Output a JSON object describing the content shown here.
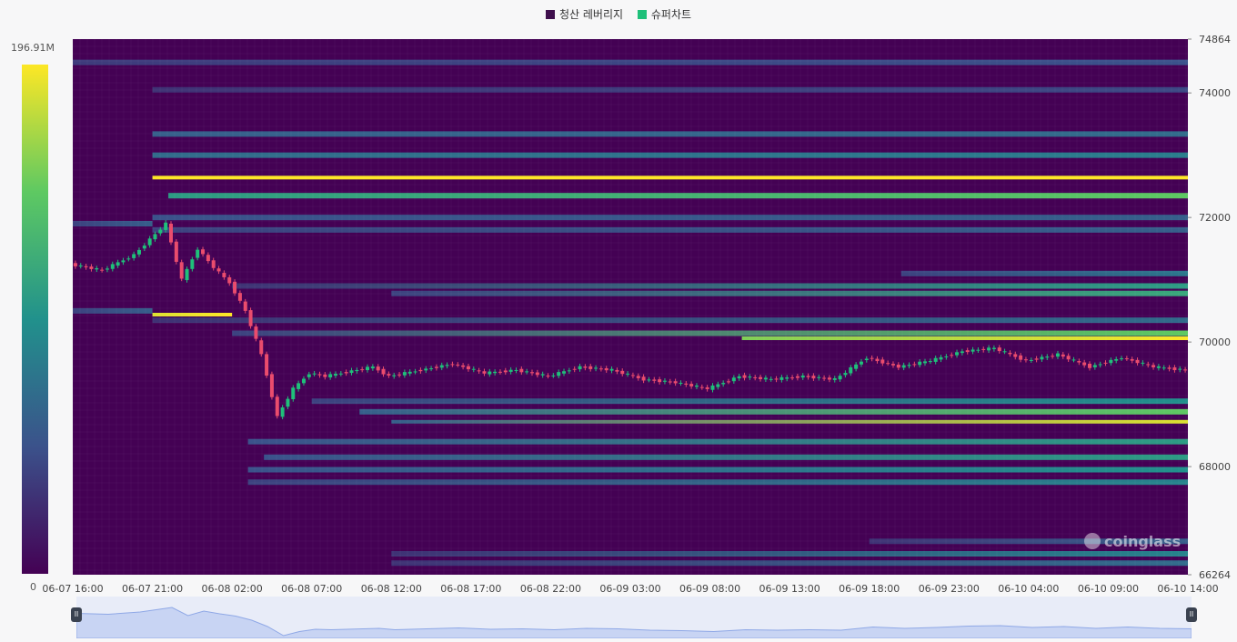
{
  "legend": {
    "items": [
      {
        "label": "청산 레버리지",
        "color": "#3f0f4d"
      },
      {
        "label": "슈퍼차트",
        "color": "#1fc07a"
      }
    ]
  },
  "colorbar": {
    "max_label": "196.91M",
    "min_label": "0"
  },
  "watermark": {
    "text": "coinglass"
  },
  "chart_data": {
    "type": "heatmap",
    "legend_placement": "top-center",
    "x_ticks": [
      "06-07 16:00",
      "06-07 21:00",
      "06-08 02:00",
      "06-08 07:00",
      "06-08 12:00",
      "06-08 17:00",
      "06-08 22:00",
      "06-09 03:00",
      "06-09 08:00",
      "06-09 13:00",
      "06-09 18:00",
      "06-09 23:00",
      "06-10 04:00",
      "06-10 09:00",
      "06-10 14:00"
    ],
    "y_ticks": [
      74864,
      74000,
      72000,
      70000,
      68000,
      66264
    ],
    "ylim": [
      66264,
      74864
    ],
    "value_range": [
      0,
      196.91
    ],
    "value_unit": "M",
    "x_range_hours": [
      0,
      70
    ],
    "liquidation_levels": [
      {
        "price": 74490,
        "start_h": 0,
        "end_h": 70,
        "intensity": [
          0.18,
          0.25
        ]
      },
      {
        "price": 74050,
        "start_h": 5,
        "end_h": 70,
        "intensity": [
          0.15,
          0.22
        ]
      },
      {
        "price": 73340,
        "start_h": 5,
        "end_h": 70,
        "intensity": [
          0.3,
          0.35
        ]
      },
      {
        "price": 73000,
        "start_h": 5,
        "end_h": 70,
        "intensity": [
          0.35,
          0.42
        ]
      },
      {
        "price": 72640,
        "start_h": 5,
        "end_h": 70,
        "intensity": [
          1.0,
          1.0
        ]
      },
      {
        "price": 72350,
        "start_h": 6,
        "end_h": 70,
        "intensity": [
          0.55,
          0.75
        ]
      },
      {
        "price": 72000,
        "start_h": 5,
        "end_h": 70,
        "intensity": [
          0.25,
          0.3
        ]
      },
      {
        "price": 71900,
        "start_h": 0,
        "end_h": 5,
        "intensity": [
          0.2,
          0.3
        ]
      },
      {
        "price": 71800,
        "start_h": 5,
        "end_h": 70,
        "intensity": [
          0.2,
          0.3
        ]
      },
      {
        "price": 71100,
        "start_h": 52,
        "end_h": 70,
        "intensity": [
          0.2,
          0.4
        ]
      },
      {
        "price": 70900,
        "start_h": 10,
        "end_h": 70,
        "intensity": [
          0.15,
          0.55
        ]
      },
      {
        "price": 70780,
        "start_h": 20,
        "end_h": 70,
        "intensity": [
          0.2,
          0.6
        ]
      },
      {
        "price": 70500,
        "start_h": 0,
        "end_h": 5,
        "intensity": [
          0.2,
          0.3
        ]
      },
      {
        "price": 70440,
        "start_h": 5,
        "end_h": 10,
        "intensity": [
          0.95,
          1.0
        ]
      },
      {
        "price": 70350,
        "start_h": 5,
        "end_h": 70,
        "intensity": [
          0.15,
          0.35
        ]
      },
      {
        "price": 70140,
        "start_h": 10,
        "end_h": 70,
        "intensity": [
          0.2,
          0.75
        ]
      },
      {
        "price": 70060,
        "start_h": 42,
        "end_h": 70,
        "intensity": [
          0.8,
          1.0
        ]
      },
      {
        "price": 69050,
        "start_h": 15,
        "end_h": 70,
        "intensity": [
          0.2,
          0.5
        ]
      },
      {
        "price": 68880,
        "start_h": 18,
        "end_h": 70,
        "intensity": [
          0.3,
          0.75
        ]
      },
      {
        "price": 68720,
        "start_h": 20,
        "end_h": 70,
        "intensity": [
          0.3,
          0.95
        ]
      },
      {
        "price": 68400,
        "start_h": 11,
        "end_h": 70,
        "intensity": [
          0.25,
          0.55
        ]
      },
      {
        "price": 68150,
        "start_h": 12,
        "end_h": 70,
        "intensity": [
          0.25,
          0.55
        ]
      },
      {
        "price": 67950,
        "start_h": 11,
        "end_h": 70,
        "intensity": [
          0.25,
          0.5
        ]
      },
      {
        "price": 67750,
        "start_h": 11,
        "end_h": 70,
        "intensity": [
          0.2,
          0.45
        ]
      },
      {
        "price": 66800,
        "start_h": 50,
        "end_h": 70,
        "intensity": [
          0.15,
          0.3
        ]
      },
      {
        "price": 66600,
        "start_h": 20,
        "end_h": 70,
        "intensity": [
          0.15,
          0.45
        ]
      },
      {
        "price": 66450,
        "start_h": 20,
        "end_h": 70,
        "intensity": [
          0.15,
          0.35
        ]
      }
    ],
    "price_series": {
      "name": "",
      "hours": [
        0,
        2,
        4,
        6,
        7,
        8,
        9,
        10,
        11,
        12,
        13,
        14,
        15,
        16,
        17,
        18,
        19,
        20,
        22,
        24,
        26,
        28,
        30,
        32,
        34,
        36,
        38,
        40,
        42,
        44,
        46,
        48,
        50,
        52,
        54,
        56,
        58,
        60,
        62,
        64,
        66,
        68,
        70
      ],
      "close": [
        71250,
        71150,
        71400,
        71900,
        71000,
        71500,
        71200,
        70950,
        70500,
        69800,
        68800,
        69250,
        69500,
        69450,
        69500,
        69550,
        69600,
        69450,
        69550,
        69650,
        69500,
        69550,
        69450,
        69600,
        69550,
        69400,
        69350,
        69250,
        69450,
        69400,
        69450,
        69400,
        69750,
        69600,
        69700,
        69850,
        69900,
        69700,
        69800,
        69600,
        69750,
        69600,
        69550
      ]
    }
  }
}
